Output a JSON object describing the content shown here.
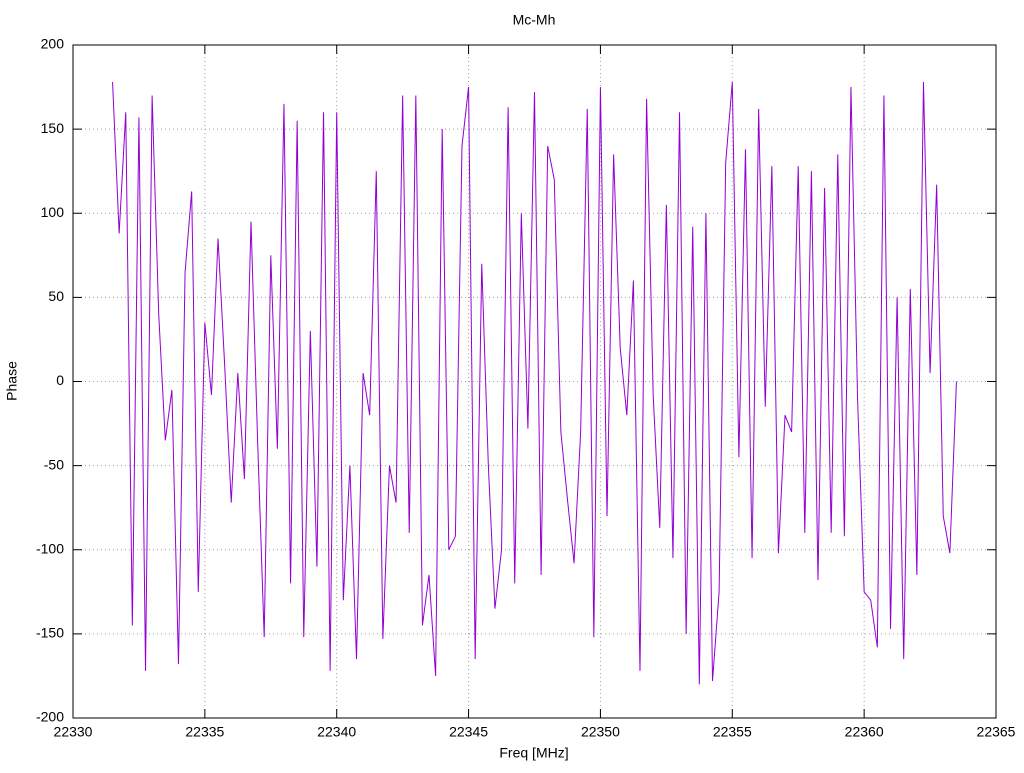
{
  "chart_data": {
    "type": "line",
    "title": "Mc-Mh",
    "x_label": "Freq [MHz]",
    "y_label": "Phase",
    "x": [
      22331.5,
      22331.75,
      22332,
      22332.25,
      22332.5,
      22332.75,
      22333,
      22333.25,
      22333.5,
      22333.75,
      22334,
      22334.25,
      22334.5,
      22334.75,
      22335,
      22335.25,
      22335.5,
      22335.75,
      22336,
      22336.25,
      22336.5,
      22336.75,
      22337,
      22337.25,
      22337.5,
      22337.75,
      22338,
      22338.25,
      22338.5,
      22338.75,
      22339,
      22339.25,
      22339.5,
      22339.75,
      22340,
      22340.25,
      22340.5,
      22340.75,
      22341,
      22341.25,
      22341.5,
      22341.75,
      22342,
      22342.25,
      22342.5,
      22342.75,
      22343,
      22343.25,
      22343.5,
      22343.75,
      22344,
      22344.25,
      22344.5,
      22344.75,
      22345,
      22345.25,
      22345.5,
      22345.75,
      22346,
      22346.25,
      22346.5,
      22346.75,
      22347,
      22347.25,
      22347.5,
      22347.75,
      22348,
      22348.25,
      22348.5,
      22348.75,
      22349,
      22349.25,
      22349.5,
      22349.75,
      22350,
      22350.25,
      22350.5,
      22350.75,
      22351,
      22351.25,
      22351.5,
      22351.75,
      22352,
      22352.25,
      22352.5,
      22352.75,
      22353,
      22353.25,
      22353.5,
      22353.75,
      22354,
      22354.25,
      22354.5,
      22354.75,
      22355,
      22355.25,
      22355.5,
      22355.75,
      22356,
      22356.25,
      22356.5,
      22356.75,
      22357,
      22357.25,
      22357.5,
      22357.75,
      22358,
      22358.25,
      22358.5,
      22358.75,
      22359,
      22359.25,
      22359.5,
      22359.75,
      22360,
      22360.25,
      22360.5,
      22360.75,
      22361,
      22361.25,
      22361.5,
      22361.75,
      22362,
      22362.25,
      22362.5,
      22362.75,
      22363,
      22363.25,
      22363.5
    ],
    "series": [
      {
        "color": "#9400d3",
        "values": [
          178,
          88,
          160,
          -145,
          157,
          -172,
          170,
          40,
          -35,
          -5,
          -168,
          65,
          113,
          -125,
          35,
          -8,
          85,
          10,
          -72,
          5,
          -58,
          95,
          -35,
          -152,
          75,
          -40,
          165,
          -120,
          155,
          -152,
          30,
          -110,
          160,
          -172,
          160,
          -130,
          -50,
          -165,
          5,
          -20,
          125,
          -153,
          -50,
          -72,
          170,
          -90,
          170,
          -145,
          -115,
          -175,
          150,
          -100,
          -92,
          140,
          175,
          -165,
          70,
          -50,
          -135,
          -100,
          163,
          -120,
          100,
          -28,
          172,
          -115,
          140,
          120,
          -30,
          -70,
          -108,
          -30,
          162,
          -152,
          175,
          -80,
          135,
          20,
          -20,
          60,
          -172,
          168,
          -8,
          -87,
          105,
          -105,
          160,
          -150,
          92,
          -180,
          100,
          -178,
          -125,
          130,
          178,
          -45,
          138,
          -105,
          162,
          -15,
          128,
          -102,
          -20,
          -30,
          128,
          -90,
          125,
          -118,
          115,
          -90,
          135,
          -92,
          175,
          -10,
          -125,
          -130,
          -158,
          170,
          -147,
          50,
          -165,
          55,
          -115,
          178,
          5,
          117,
          -80,
          -102,
          0
        ]
      }
    ],
    "xlim": [
      22330,
      22365
    ],
    "xticks": [
      22330,
      22335,
      22340,
      22345,
      22350,
      22355,
      22360,
      22365
    ],
    "ylim": [
      -200,
      200
    ],
    "yticks": [
      -200,
      -150,
      -100,
      -50,
      0,
      50,
      100,
      150,
      200
    ],
    "grid": true
  }
}
